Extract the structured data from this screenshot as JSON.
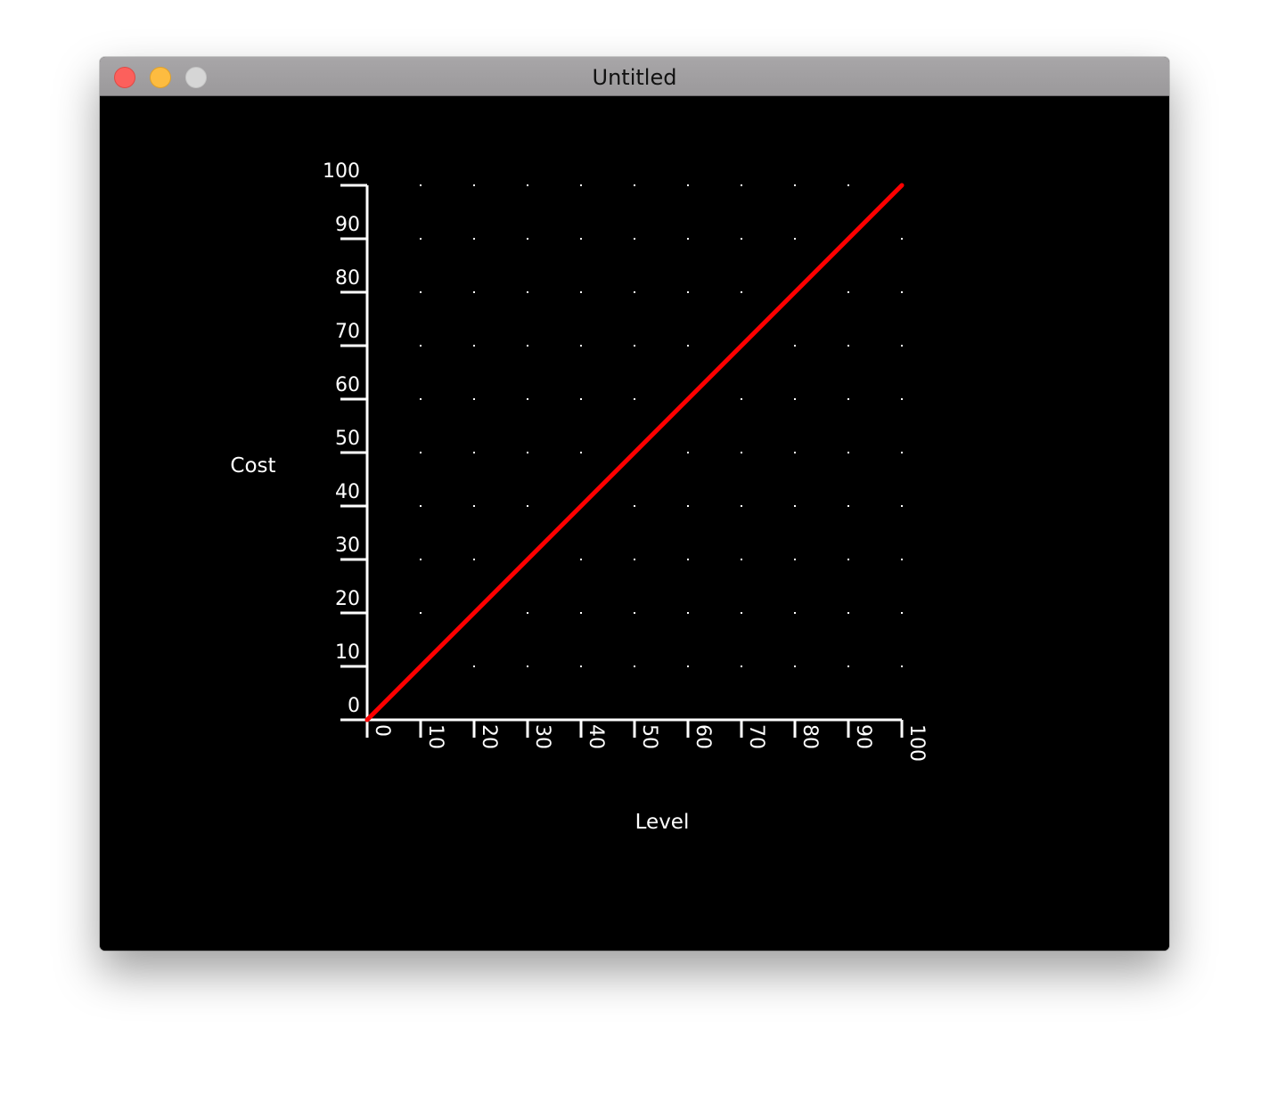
{
  "window": {
    "title": "Untitled"
  },
  "chart_data": {
    "type": "line",
    "xlabel": "Level",
    "ylabel": "Cost",
    "xlim": [
      0,
      100
    ],
    "ylim": [
      0,
      100
    ],
    "x_ticks": [
      "0",
      "10",
      "20",
      "30",
      "40",
      "50",
      "60",
      "70",
      "80",
      "90",
      "100"
    ],
    "y_ticks": [
      "0",
      "10",
      "20",
      "30",
      "40",
      "50",
      "60",
      "70",
      "80",
      "90",
      "100"
    ],
    "grid": "dotted",
    "series": [
      {
        "color": "#ff0000",
        "x": [
          0,
          100
        ],
        "y": [
          0,
          100
        ]
      }
    ],
    "colors": {
      "background": "#000000",
      "axis": "#ffffff",
      "grid": "#ffffff",
      "line": "#ff0000"
    }
  }
}
